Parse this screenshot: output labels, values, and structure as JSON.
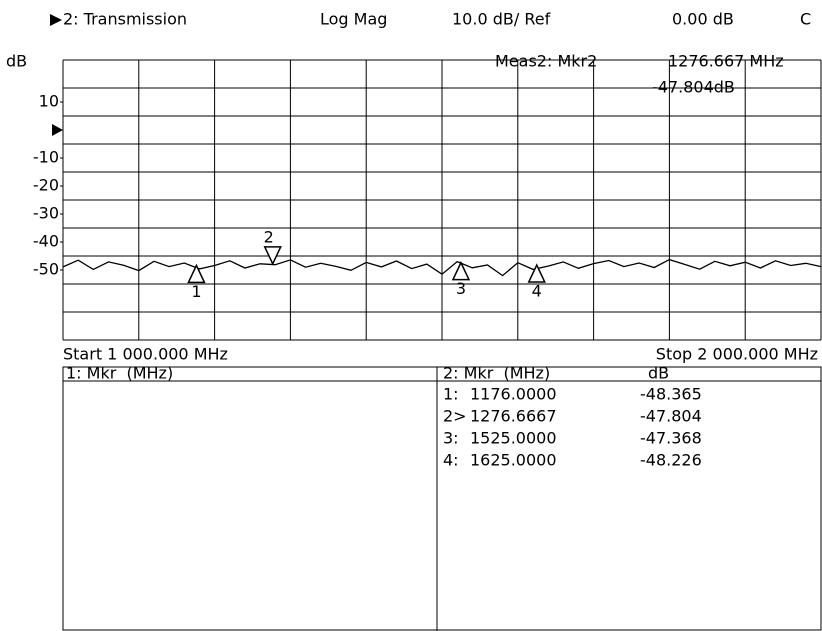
{
  "header": {
    "channel": "2: Transmission",
    "format": "Log Mag",
    "scale": "10.0 dB/ Ref",
    "ref": "0.00 dB",
    "extra": "C"
  },
  "chart_data": {
    "type": "line",
    "y_label": "dB",
    "readout": {
      "title": "Meas2: Mkr2",
      "frequency": "1276.667 MHz",
      "value": "-47.804dB"
    },
    "start": "Start 1 000.000 MHz",
    "stop": "Stop 2 000.000 MHz",
    "xlim": [
      1000,
      2000
    ],
    "ylim": [
      -75,
      25
    ],
    "yticks": [
      10,
      -10,
      -20,
      -30,
      -40,
      -50
    ],
    "x": [
      1000,
      1020,
      1040,
      1060,
      1080,
      1100,
      1120,
      1140,
      1160,
      1180,
      1200,
      1220,
      1240,
      1260,
      1280,
      1300,
      1320,
      1340,
      1360,
      1380,
      1400,
      1420,
      1440,
      1460,
      1480,
      1500,
      1520,
      1540,
      1560,
      1580,
      1600,
      1620,
      1640,
      1660,
      1680,
      1700,
      1720,
      1740,
      1760,
      1780,
      1800,
      1820,
      1840,
      1860,
      1880,
      1900,
      1920,
      1940,
      1960,
      1980,
      2000
    ],
    "series": [
      {
        "color": "#000000",
        "values": [
          -48.9,
          -46.5,
          -49.8,
          -47.1,
          -48.3,
          -50.2,
          -46.9,
          -48.8,
          -47.5,
          -49.6,
          -48.4,
          -46.7,
          -49.3,
          -47.8,
          -48.1,
          -46.4,
          -49.0,
          -47.6,
          -48.7,
          -50.1,
          -47.3,
          -48.9,
          -46.8,
          -49.5,
          -47.9,
          -51.5,
          -47.0,
          -49.2,
          -48.2,
          -52.0,
          -47.4,
          -49.8,
          -48.6,
          -47.1,
          -49.4,
          -47.7,
          -46.6,
          -48.8,
          -47.5,
          -49.1,
          -46.3,
          -48.0,
          -49.7,
          -46.9,
          -48.5,
          -47.2,
          -49.3,
          -46.7,
          -48.4,
          -47.6,
          -48.8
        ]
      }
    ],
    "markers": {
      "labels": [
        "1",
        "2",
        "3",
        "4"
      ],
      "x": [
        1176,
        1276.6667,
        1525,
        1625
      ],
      "values": [
        -48.365,
        -47.804,
        -47.368,
        -48.226
      ]
    }
  },
  "table_left": {
    "title": "1: Mkr  (MHz)"
  },
  "table_right": {
    "headers": [
      "2: Mkr  (MHz)",
      "dB"
    ],
    "rows": [
      [
        "1:",
        "1176.0000",
        "-48.365"
      ],
      [
        "2>",
        "1276.6667",
        "-47.804"
      ],
      [
        "3:",
        "1525.0000",
        "-47.368"
      ],
      [
        "4:",
        "1625.0000",
        "-48.226"
      ]
    ]
  }
}
